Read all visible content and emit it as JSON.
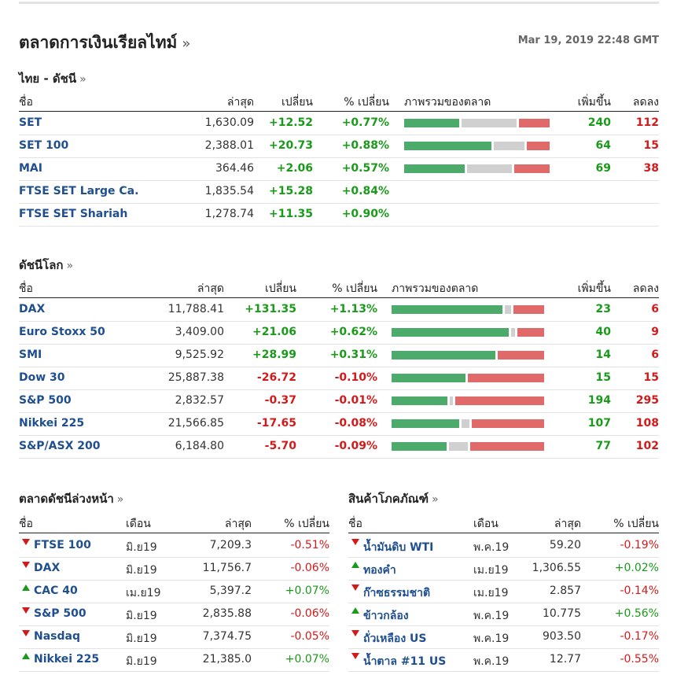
{
  "header": {
    "title": "ตลาดการเงินเรียลไทม์",
    "more": "»",
    "timestamp": "Mar 19, 2019 22:48 GMT"
  },
  "thai": {
    "title": "ไทย - ดัชนี",
    "more": "»",
    "cols": [
      "ชื่อ",
      "ล่าสุด",
      "เปลี่ยน",
      "% เปลี่ยน",
      "ภาพรวมของตลาด",
      "เพิ่มขึ้น",
      "ลดลง"
    ],
    "rows": [
      {
        "name": "SET",
        "last": "1,630.09",
        "chg": "+12.52",
        "pct": "+0.77%",
        "up": "240",
        "down": "112",
        "bar": [
          0.39,
          0.39,
          0.19
        ]
      },
      {
        "name": "SET 100",
        "last": "2,388.01",
        "chg": "+20.73",
        "pct": "+0.88%",
        "up": "64",
        "down": "15",
        "bar": [
          0.62,
          0.22,
          0.16
        ]
      },
      {
        "name": "MAI",
        "last": "364.46",
        "chg": "+2.06",
        "pct": "+0.57%",
        "up": "69",
        "down": "38",
        "bar": [
          0.43,
          0.32,
          0.25
        ]
      },
      {
        "name": "FTSE SET Large Ca.",
        "last": "1,835.54",
        "chg": "+15.28",
        "pct": "+0.84%",
        "up": "",
        "down": "",
        "bar": null
      },
      {
        "name": "FTSE SET Shariah",
        "last": "1,278.74",
        "chg": "+11.35",
        "pct": "+0.90%",
        "up": "",
        "down": "",
        "bar": null
      }
    ]
  },
  "world": {
    "title": "ดัชนีโลก",
    "more": "»",
    "cols": [
      "ชื่อ",
      "ล่าสุด",
      "เปลี่ยน",
      "% เปลี่ยน",
      "ภาพรวมของตลาด",
      "เพิ่มขึ้น",
      "ลดลง"
    ],
    "rows": [
      {
        "name": "DAX",
        "last": "11,788.41",
        "chg": "+131.35",
        "pct": "+1.13%",
        "up": "23",
        "down": "6",
        "dir": "up",
        "bar": [
          0.75,
          0.04,
          0.21
        ]
      },
      {
        "name": "Euro Stoxx 50",
        "last": "3,409.00",
        "chg": "+21.06",
        "pct": "+0.62%",
        "up": "40",
        "down": "9",
        "dir": "up",
        "bar": [
          0.79,
          0.03,
          0.18
        ]
      },
      {
        "name": "SMI",
        "last": "9,525.92",
        "chg": "+28.99",
        "pct": "+0.31%",
        "up": "14",
        "down": "6",
        "dir": "up",
        "bar": [
          0.7,
          0.0,
          0.3
        ]
      },
      {
        "name": "Dow 30",
        "last": "25,887.38",
        "chg": "-26.72",
        "pct": "-0.10%",
        "up": "15",
        "down": "15",
        "dir": "dn",
        "bar": [
          0.5,
          0.0,
          0.5
        ]
      },
      {
        "name": "S&P 500",
        "last": "2,832.57",
        "chg": "-0.37",
        "pct": "-0.01%",
        "up": "194",
        "down": "295",
        "dir": "dn",
        "bar": [
          0.38,
          0.02,
          0.6
        ]
      },
      {
        "name": "Nikkei 225",
        "last": "21,566.85",
        "chg": "-17.65",
        "pct": "-0.08%",
        "up": "107",
        "down": "108",
        "dir": "dn",
        "bar": [
          0.46,
          0.05,
          0.49
        ]
      },
      {
        "name": "S&P/ASX 200",
        "last": "6,184.80",
        "chg": "-5.70",
        "pct": "-0.09%",
        "up": "77",
        "down": "102",
        "dir": "dn",
        "bar": [
          0.37,
          0.13,
          0.5
        ]
      }
    ]
  },
  "futures": {
    "title": "ตลาดดัชนีล่วงหน้า",
    "more": "»",
    "cols": [
      "ชื่อ",
      "เดือน",
      "ล่าสุด",
      "% เปลี่ยน"
    ],
    "rows": [
      {
        "name": "FTSE 100",
        "month": "มิ.ย19",
        "last": "7,209.3",
        "pct": "-0.51%",
        "dir": "dn"
      },
      {
        "name": "DAX",
        "month": "มิ.ย19",
        "last": "11,756.7",
        "pct": "-0.06%",
        "dir": "dn"
      },
      {
        "name": "CAC 40",
        "month": "เม.ย19",
        "last": "5,397.2",
        "pct": "+0.07%",
        "dir": "up"
      },
      {
        "name": "S&P 500",
        "month": "มิ.ย19",
        "last": "2,835.88",
        "pct": "-0.06%",
        "dir": "dn"
      },
      {
        "name": "Nasdaq",
        "month": "มิ.ย19",
        "last": "7,374.75",
        "pct": "-0.05%",
        "dir": "dn"
      },
      {
        "name": "Nikkei 225",
        "month": "มิ.ย19",
        "last": "21,385.0",
        "pct": "+0.07%",
        "dir": "up"
      }
    ]
  },
  "commodities": {
    "title": "สินค้าโภคภัณฑ์",
    "more": "»",
    "cols": [
      "ชื่อ",
      "เดือน",
      "ล่าสุด",
      "% เปลี่ยน"
    ],
    "rows": [
      {
        "name": "น้ำมันดิบ WTI",
        "month": "พ.ค.19",
        "last": "59.20",
        "pct": "-0.19%",
        "dir": "dn"
      },
      {
        "name": "ทองคำ",
        "month": "เม.ย19",
        "last": "1,306.55",
        "pct": "+0.02%",
        "dir": "up"
      },
      {
        "name": "ก๊าซธรรมชาติ",
        "month": "เม.ย19",
        "last": "2.857",
        "pct": "-0.14%",
        "dir": "dn"
      },
      {
        "name": "ข้าวกล้อง",
        "month": "พ.ค.19",
        "last": "10.775",
        "pct": "+0.56%",
        "dir": "up"
      },
      {
        "name": "ถั่วเหลือง US",
        "month": "พ.ค.19",
        "last": "903.50",
        "pct": "-0.17%",
        "dir": "dn"
      },
      {
        "name": "น้ำตาล #11 US",
        "month": "พ.ค.19",
        "last": "12.77",
        "pct": "-0.55%",
        "dir": "dn"
      }
    ]
  }
}
